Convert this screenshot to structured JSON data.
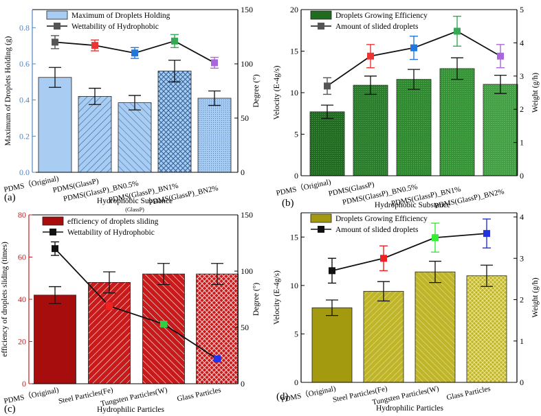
{
  "chart_data": [
    {
      "id": "a",
      "type": "bar+line",
      "panel_label": "(a)",
      "xlabel": "Hydrophobic Substance",
      "xlabel_sub": "(GlassP)",
      "ylabel": "Maximum of Droplets Holding (g)",
      "y2label": "Degree (°)",
      "ylim": [
        0,
        0.9
      ],
      "y2lim": [
        0,
        150
      ],
      "yticks": [
        "0.0",
        "0.2",
        "0.4",
        "0.6",
        "0.8"
      ],
      "yticks_v": [
        0,
        0.2,
        0.4,
        0.6,
        0.8
      ],
      "y2ticks": [
        "0",
        "50",
        "100",
        "150"
      ],
      "y2ticks_v": [
        0,
        50,
        100,
        150
      ],
      "categories": [
        "PDMS（Original)",
        "PDMS(GlassP)",
        "PDMS(GlassP)_BN0.5%",
        "PDMS(GlassP)_BN1%",
        "PDMS(GlassP)_BN2%"
      ],
      "bar_series": {
        "name": "Maximum of Droplets Holding",
        "values": [
          0.525,
          0.42,
          0.385,
          0.56,
          0.41
        ],
        "errors": [
          0.055,
          0.045,
          0.04,
          0.06,
          0.04
        ]
      },
      "line_series": {
        "name": "Wettability of Hydrophobic",
        "values": [
          120,
          117,
          110,
          121,
          101
        ],
        "errors": [
          6,
          5,
          5,
          6,
          5
        ]
      },
      "bar_colors": [
        "#a9cdf2",
        "#a9cdf2",
        "#a9cdf2",
        "#a9cdf2",
        "#a9cdf2"
      ],
      "marker_colors": [
        "#555555",
        "#ee3333",
        "#2277dd",
        "#33aa55",
        "#aa66dd"
      ],
      "legend_colors": [
        "#a9cdf2",
        "#555555"
      ],
      "line_color": "#111111",
      "axis_color": "#4f86c6",
      "axis2_color": "#000000"
    },
    {
      "id": "b",
      "type": "bar+line",
      "panel_label": "(b)",
      "xlabel": "Hydrophobic Substance",
      "xlabel_sub": "",
      "ylabel": "Velocity (E-4g/s)",
      "y2label": "Weight (g/h)",
      "ylim": [
        0,
        20
      ],
      "y2lim": [
        0,
        5
      ],
      "yticks": [
        "0",
        "5",
        "10",
        "15",
        "20"
      ],
      "yticks_v": [
        0,
        5,
        10,
        15,
        20
      ],
      "y2ticks": [
        "0",
        "1",
        "2",
        "3",
        "4",
        "5"
      ],
      "y2ticks_v": [
        0,
        1,
        2,
        3,
        4,
        5
      ],
      "categories": [
        "PDMS（Original)",
        "PDMS(GlassP)",
        "PDMS(GlassP)_BN0.5%",
        "PDMS(GlassP)_BN1%",
        "PDMS(GlassP)_BN2%"
      ],
      "bar_series": {
        "name": "Droplets Growing Efficiency",
        "values": [
          7.7,
          10.9,
          11.6,
          12.9,
          11.0
        ],
        "errors": [
          0.8,
          1.1,
          1.2,
          1.3,
          1.1
        ]
      },
      "line_series": {
        "name": "Amount of slided droplets",
        "values": [
          2.7,
          3.6,
          3.85,
          4.35,
          3.6
        ],
        "errors": [
          0.25,
          0.35,
          0.35,
          0.45,
          0.35
        ]
      },
      "bar_colors": [
        "#1f6b1f",
        "#2a7d2a",
        "#2f8a2f",
        "#359435",
        "#44a044"
      ],
      "marker_colors": [
        "#555555",
        "#ee3333",
        "#2277dd",
        "#33aa55",
        "#aa66dd"
      ],
      "legend_colors": [
        "#1f6b1f",
        "#555555"
      ],
      "line_color": "#111111",
      "axis_color": "#000000",
      "axis2_color": "#000000"
    },
    {
      "id": "c",
      "type": "bar+line",
      "panel_label": "(c)",
      "xlabel": "Hydrophilic Particles",
      "xlabel_sub": "",
      "ylabel": "efficiency of droplets sliding (times)",
      "y2label": "Degree (°)",
      "ylim": [
        0,
        80
      ],
      "y2lim": [
        0,
        150
      ],
      "yticks": [
        "0",
        "20",
        "40",
        "60",
        "80"
      ],
      "yticks_v": [
        0,
        20,
        40,
        60,
        80
      ],
      "y2ticks": [
        "0",
        "50",
        "100",
        "150"
      ],
      "y2ticks_v": [
        0,
        50,
        100,
        150
      ],
      "categories": [
        "PDMS（Original)",
        "Steel Particles(Fe)",
        "Tungsten Particles(W)",
        "Glass Particles"
      ],
      "bar_series": {
        "name": "efficiency of droplets sliding",
        "values": [
          42,
          48,
          52,
          52
        ],
        "errors": [
          4,
          5,
          5,
          5
        ]
      },
      "line_series": {
        "name": "Wettability of Hydrophobic",
        "values": [
          120,
          69,
          53,
          22
        ],
        "errors": [
          6,
          3,
          2,
          1
        ]
      },
      "bar_colors": [
        "#a80d0d",
        "#c81a1a",
        "#c81a1a",
        "#c81a1a"
      ],
      "marker_colors": [
        "#111111",
        "#ee2222",
        "#33cc44",
        "#2233ee"
      ],
      "legend_colors": [
        "#a80d0d",
        "#111111"
      ],
      "line_color": "#111111",
      "axis_color": "#c02020",
      "axis2_color": "#000000"
    },
    {
      "id": "d",
      "type": "bar+line",
      "panel_label": "(d)",
      "xlabel": "Hydrophilic Particles",
      "xlabel_sub": "",
      "ylabel": "Velocity (E-4g/s)",
      "y2label": "Weight (g/h)",
      "ylim": [
        0,
        17.5
      ],
      "y2lim": [
        0,
        4.1
      ],
      "yticks": [
        "0",
        "5",
        "10",
        "15"
      ],
      "yticks_v": [
        0,
        5,
        10,
        15
      ],
      "y2ticks": [
        "0",
        "1",
        "2",
        "3",
        "4"
      ],
      "y2ticks_v": [
        0,
        1,
        2,
        3,
        4
      ],
      "categories": [
        "PDMS（Original)",
        "Steel Particles(Fe)",
        "Tungsten Particles(W)",
        "Glass Particles"
      ],
      "bar_series": {
        "name": "Droplets Growing Efficiency",
        "values": [
          7.7,
          9.4,
          11.4,
          11.0
        ],
        "errors": [
          0.8,
          1.0,
          1.1,
          1.1
        ]
      },
      "line_series": {
        "name": "Amount of slided droplets",
        "values": [
          2.7,
          3.0,
          3.5,
          3.6
        ],
        "errors": [
          0.3,
          0.3,
          0.35,
          0.35
        ]
      },
      "bar_colors": [
        "#a39a10",
        "#bfb52a",
        "#bfb52a",
        "#bfb52a"
      ],
      "marker_colors": [
        "#111111",
        "#ee2222",
        "#33ee33",
        "#2233dd"
      ],
      "legend_colors": [
        "#a39a10",
        "#111111"
      ],
      "line_color": "#111111",
      "axis_color": "#000000",
      "axis2_color": "#000000"
    }
  ]
}
